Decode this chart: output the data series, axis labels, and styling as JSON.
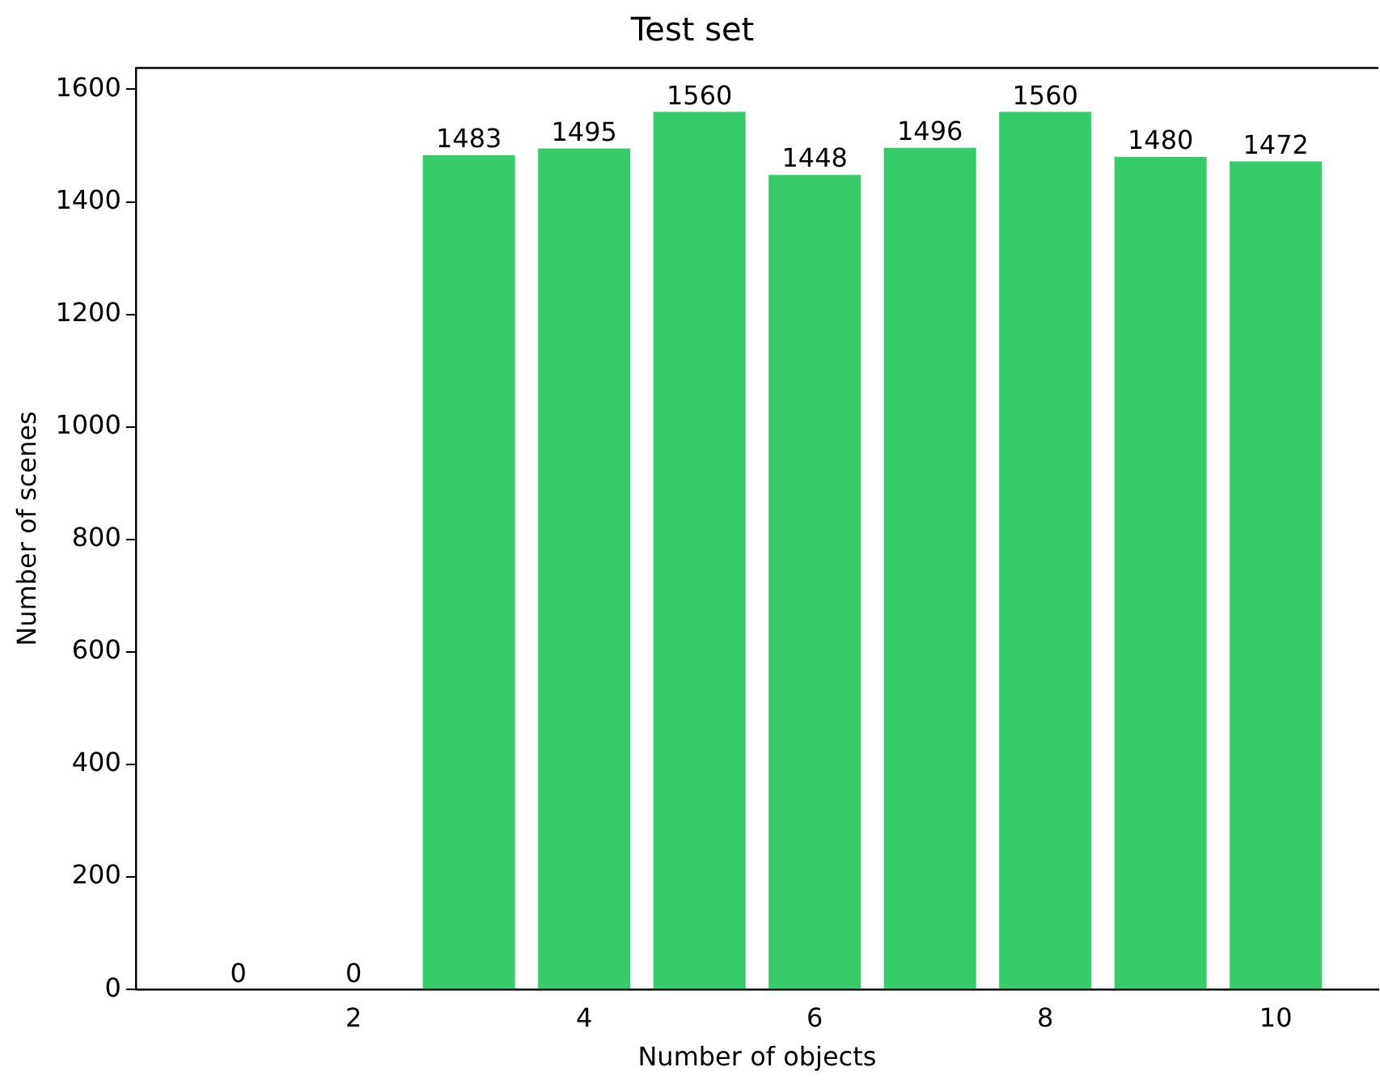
{
  "chart_data": {
    "type": "bar",
    "title": "Test set",
    "xlabel": "Number of objects",
    "ylabel": "Number of scenes",
    "x": [
      1,
      2,
      3,
      4,
      5,
      6,
      7,
      8,
      9,
      10
    ],
    "values": [
      0,
      0,
      1483,
      1495,
      1560,
      1448,
      1496,
      1560,
      1480,
      1472
    ],
    "color": "#37cc6a",
    "xlim": [
      0.11,
      10.89
    ],
    "xticks": [
      2,
      4,
      6,
      8,
      10
    ],
    "ylim": [
      0,
      1638
    ],
    "yticks": [
      0,
      200,
      400,
      600,
      800,
      1000,
      1200,
      1400,
      1600
    ],
    "grid": false,
    "legend": false,
    "data_labels": true
  }
}
